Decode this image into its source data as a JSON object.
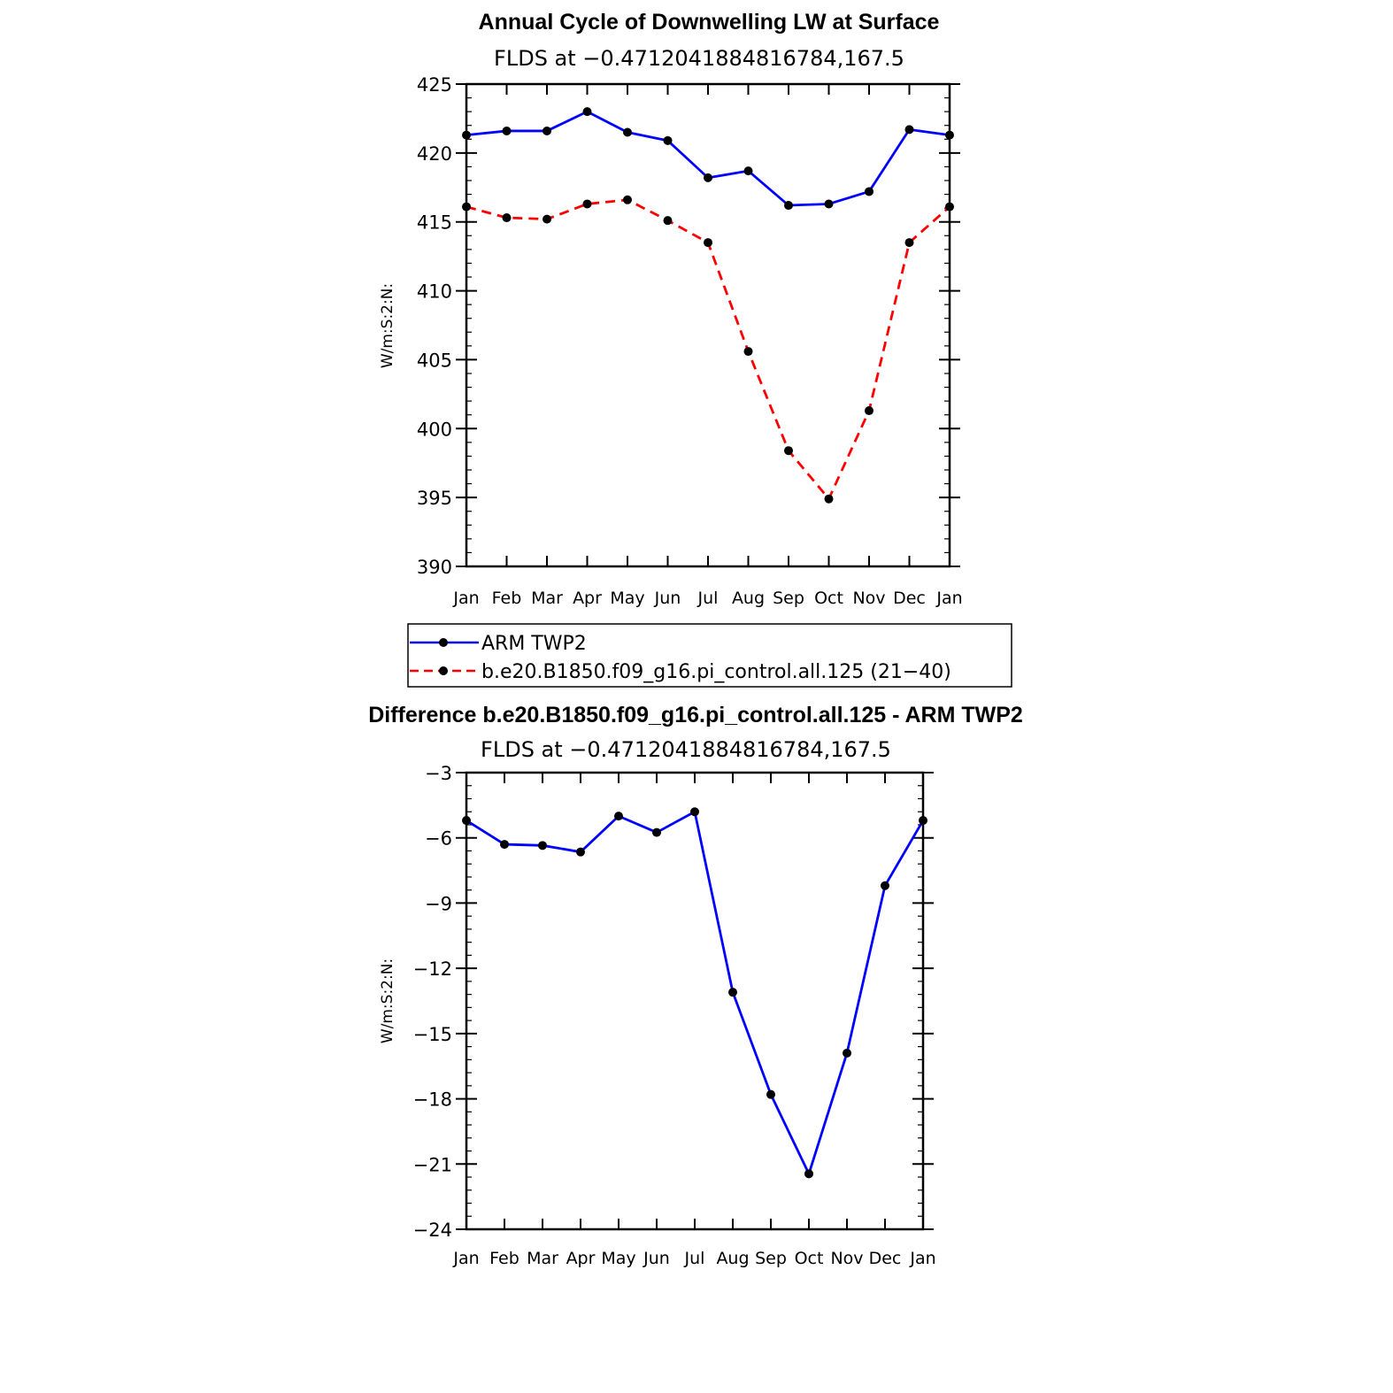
{
  "chart_data": [
    {
      "type": "line",
      "title": "Annual Cycle of Downwelling LW at Surface",
      "subtitle": "FLDS at −0.4712041884816784,167.5",
      "ylabel": "W/m:S:2:N:",
      "xlabel": "",
      "categories": [
        "Jan",
        "Feb",
        "Mar",
        "Apr",
        "May",
        "Jun",
        "Jul",
        "Aug",
        "Sep",
        "Oct",
        "Nov",
        "Dec",
        "Jan"
      ],
      "ylim": [
        390,
        425
      ],
      "yticks": [
        390,
        395,
        400,
        405,
        410,
        415,
        420,
        425
      ],
      "ytick_labels": [
        "390",
        "395",
        "400",
        "405",
        "410",
        "415",
        "420",
        "425"
      ],
      "grid": false,
      "legend_position": "bottom",
      "series": [
        {
          "name": "ARM TWP2",
          "color": "#0000ff",
          "dash": "solid",
          "values": [
            421.3,
            421.6,
            421.6,
            423.0,
            421.5,
            420.9,
            418.2,
            418.7,
            416.2,
            416.3,
            417.2,
            421.7,
            421.3
          ]
        },
        {
          "name": "b.e20.B1850.f09_g16.pi_control.all.125 (21−40)",
          "color": "#ff0000",
          "dash": "dashed",
          "values": [
            416.1,
            415.3,
            415.2,
            416.3,
            416.6,
            415.1,
            413.5,
            405.6,
            398.4,
            394.9,
            401.3,
            413.5,
            416.1
          ]
        }
      ]
    },
    {
      "type": "line",
      "title": "Difference b.e20.B1850.f09_g16.pi_control.all.125 - ARM TWP2",
      "subtitle": "FLDS at −0.4712041884816784,167.5",
      "ylabel": "W/m:S:2:N:",
      "xlabel": "",
      "categories": [
        "Jan",
        "Feb",
        "Mar",
        "Apr",
        "May",
        "Jun",
        "Jul",
        "Aug",
        "Sep",
        "Oct",
        "Nov",
        "Dec",
        "Jan"
      ],
      "ylim": [
        -24,
        -3
      ],
      "yticks": [
        -24,
        -21,
        -18,
        -15,
        -12,
        -9,
        -6,
        -3
      ],
      "ytick_labels": [
        "−24",
        "−21",
        "−18",
        "−15",
        "−12",
        "−9",
        "−6",
        "−3"
      ],
      "grid": false,
      "series": [
        {
          "color": "#0000ff",
          "dash": "solid",
          "values": [
            -5.2,
            -6.3,
            -6.35,
            -6.65,
            -5.0,
            -5.75,
            -4.8,
            -13.1,
            -17.8,
            -21.45,
            -15.9,
            -8.2,
            -5.2
          ]
        }
      ]
    }
  ]
}
